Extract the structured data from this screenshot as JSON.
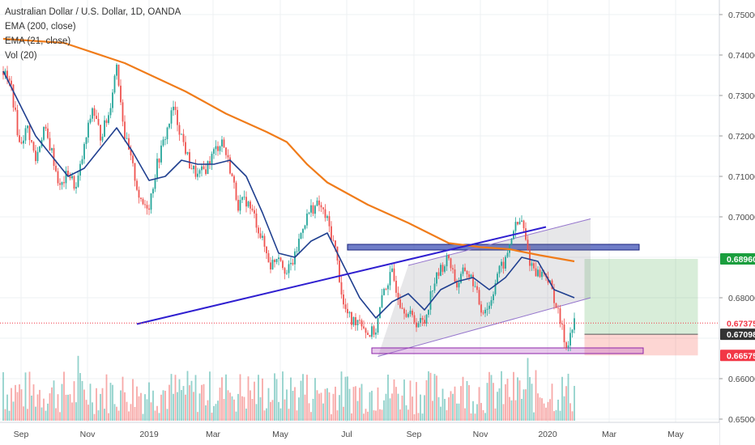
{
  "legend": {
    "title": "Australian Dollar / U.S. Dollar, 1D, OANDA",
    "ema200": "EMA (200, close)",
    "ema21": "EMA (21, close)",
    "vol": "Vol (20)"
  },
  "colors": {
    "up": "#26a69a",
    "down": "#ef5350",
    "ema200": "#f07c1a",
    "ema21": "#1f3f8f",
    "trendline": "#2f1fd0",
    "channel": "#9575cd",
    "green_tag": "#1b9e3e",
    "red_tag": "#f23645",
    "dark_tag": "#333333"
  },
  "chart_data": {
    "type": "candlestick",
    "title": "Australian Dollar / U.S. Dollar, 1D, OANDA",
    "xlabel": "",
    "ylabel": "",
    "x_ticks": [
      "Sep",
      "Nov",
      "2019",
      "Mar",
      "May",
      "Jul",
      "Sep",
      "Nov",
      "2020",
      "Mar",
      "May"
    ],
    "y_ticks": [
      "0.75000",
      "0.74000",
      "0.73000",
      "0.72000",
      "0.71000",
      "0.70000",
      "0.68000",
      "0.66000",
      "0.65000"
    ],
    "ylim": [
      0.648,
      0.752
    ],
    "price_tags": [
      {
        "label": "0.68960",
        "value": 0.6896,
        "kind": "green"
      },
      {
        "label": "0.67375",
        "value": 0.67375,
        "kind": "red_text"
      },
      {
        "label": "0.67098",
        "value": 0.67098,
        "kind": "dark"
      },
      {
        "label": "0.66575",
        "value": 0.66575,
        "kind": "red"
      }
    ],
    "close_path": [
      [
        0,
        0.736
      ],
      [
        4,
        0.732
      ],
      [
        8,
        0.718
      ],
      [
        12,
        0.722
      ],
      [
        16,
        0.714
      ],
      [
        20,
        0.722
      ],
      [
        24,
        0.716
      ],
      [
        28,
        0.707
      ],
      [
        32,
        0.711
      ],
      [
        36,
        0.707
      ],
      [
        40,
        0.717
      ],
      [
        44,
        0.727
      ],
      [
        48,
        0.72
      ],
      [
        52,
        0.725
      ],
      [
        56,
        0.738
      ],
      [
        60,
        0.72
      ],
      [
        64,
        0.712
      ],
      [
        68,
        0.703
      ],
      [
        72,
        0.703
      ],
      [
        76,
        0.713
      ],
      [
        80,
        0.72
      ],
      [
        84,
        0.727
      ],
      [
        88,
        0.72
      ],
      [
        92,
        0.713
      ],
      [
        96,
        0.71
      ],
      [
        100,
        0.712
      ],
      [
        104,
        0.716
      ],
      [
        108,
        0.719
      ],
      [
        112,
        0.712
      ],
      [
        116,
        0.703
      ],
      [
        120,
        0.704
      ],
      [
        124,
        0.7
      ],
      [
        128,
        0.694
      ],
      [
        132,
        0.688
      ],
      [
        136,
        0.691
      ],
      [
        140,
        0.686
      ],
      [
        144,
        0.69
      ],
      [
        148,
        0.698
      ],
      [
        152,
        0.702
      ],
      [
        156,
        0.703
      ],
      [
        160,
        0.699
      ],
      [
        164,
        0.692
      ],
      [
        168,
        0.678
      ],
      [
        172,
        0.674
      ],
      [
        176,
        0.675
      ],
      [
        180,
        0.671
      ],
      [
        184,
        0.672
      ],
      [
        188,
        0.682
      ],
      [
        192,
        0.686
      ],
      [
        196,
        0.679
      ],
      [
        200,
        0.676
      ],
      [
        204,
        0.674
      ],
      [
        208,
        0.674
      ],
      [
        212,
        0.683
      ],
      [
        216,
        0.687
      ],
      [
        220,
        0.69
      ],
      [
        224,
        0.683
      ],
      [
        228,
        0.687
      ],
      [
        232,
        0.684
      ],
      [
        236,
        0.677
      ],
      [
        240,
        0.678
      ],
      [
        244,
        0.686
      ],
      [
        248,
        0.689
      ],
      [
        252,
        0.697
      ],
      [
        256,
        0.699
      ],
      [
        260,
        0.689
      ],
      [
        264,
        0.686
      ],
      [
        268,
        0.686
      ],
      [
        272,
        0.68
      ],
      [
        276,
        0.672
      ],
      [
        278,
        0.668
      ],
      [
        280,
        0.671
      ],
      [
        282,
        0.6737
      ]
    ],
    "ema200_path": [
      [
        0,
        0.744
      ],
      [
        30,
        0.743
      ],
      [
        60,
        0.738
      ],
      [
        90,
        0.731
      ],
      [
        110,
        0.7255
      ],
      [
        130,
        0.721
      ],
      [
        140,
        0.7185
      ],
      [
        150,
        0.713
      ],
      [
        160,
        0.7085
      ],
      [
        180,
        0.703
      ],
      [
        200,
        0.6985
      ],
      [
        220,
        0.6935
      ],
      [
        236,
        0.6925
      ],
      [
        250,
        0.692
      ],
      [
        265,
        0.6905
      ],
      [
        282,
        0.689
      ]
    ],
    "ema21_path": [
      [
        0,
        0.736
      ],
      [
        8,
        0.728
      ],
      [
        16,
        0.72
      ],
      [
        24,
        0.715
      ],
      [
        32,
        0.71
      ],
      [
        40,
        0.712
      ],
      [
        48,
        0.717
      ],
      [
        56,
        0.722
      ],
      [
        64,
        0.716
      ],
      [
        72,
        0.709
      ],
      [
        80,
        0.71
      ],
      [
        88,
        0.714
      ],
      [
        96,
        0.713
      ],
      [
        104,
        0.713
      ],
      [
        112,
        0.714
      ],
      [
        120,
        0.71
      ],
      [
        128,
        0.701
      ],
      [
        136,
        0.691
      ],
      [
        144,
        0.69
      ],
      [
        152,
        0.694
      ],
      [
        160,
        0.696
      ],
      [
        168,
        0.688
      ],
      [
        176,
        0.68
      ],
      [
        184,
        0.675
      ],
      [
        192,
        0.679
      ],
      [
        200,
        0.681
      ],
      [
        208,
        0.677
      ],
      [
        216,
        0.682
      ],
      [
        224,
        0.684
      ],
      [
        232,
        0.685
      ],
      [
        240,
        0.682
      ],
      [
        248,
        0.685
      ],
      [
        256,
        0.69
      ],
      [
        264,
        0.689
      ],
      [
        272,
        0.682
      ],
      [
        282,
        0.68
      ]
    ],
    "drawings": {
      "trendline": {
        "from": [
          66,
          0.6735
        ],
        "to": [
          268,
          0.6975
        ]
      },
      "channel_upper": {
        "from": [
          200,
          0.688
        ],
        "to": [
          290,
          0.6995
        ]
      },
      "channel_lower": {
        "from": [
          185,
          0.6655
        ],
        "to": [
          290,
          0.68
        ]
      },
      "resistance_zone": {
        "x_from": 170,
        "x_to": 314,
        "y_low": 0.6918,
        "y_high": 0.6932
      },
      "support_zone": {
        "x_from": 182,
        "x_to": 316,
        "y_low": 0.6662,
        "y_high": 0.6676
      },
      "profit_zone": {
        "x_from": 287,
        "x_to": 343,
        "y_low": 0.67098,
        "y_high": 0.6896
      },
      "stop_zone": {
        "x_from": 287,
        "x_to": 343,
        "y_low": 0.66575,
        "y_high": 0.67098
      },
      "current_price_line": 0.67375
    }
  }
}
